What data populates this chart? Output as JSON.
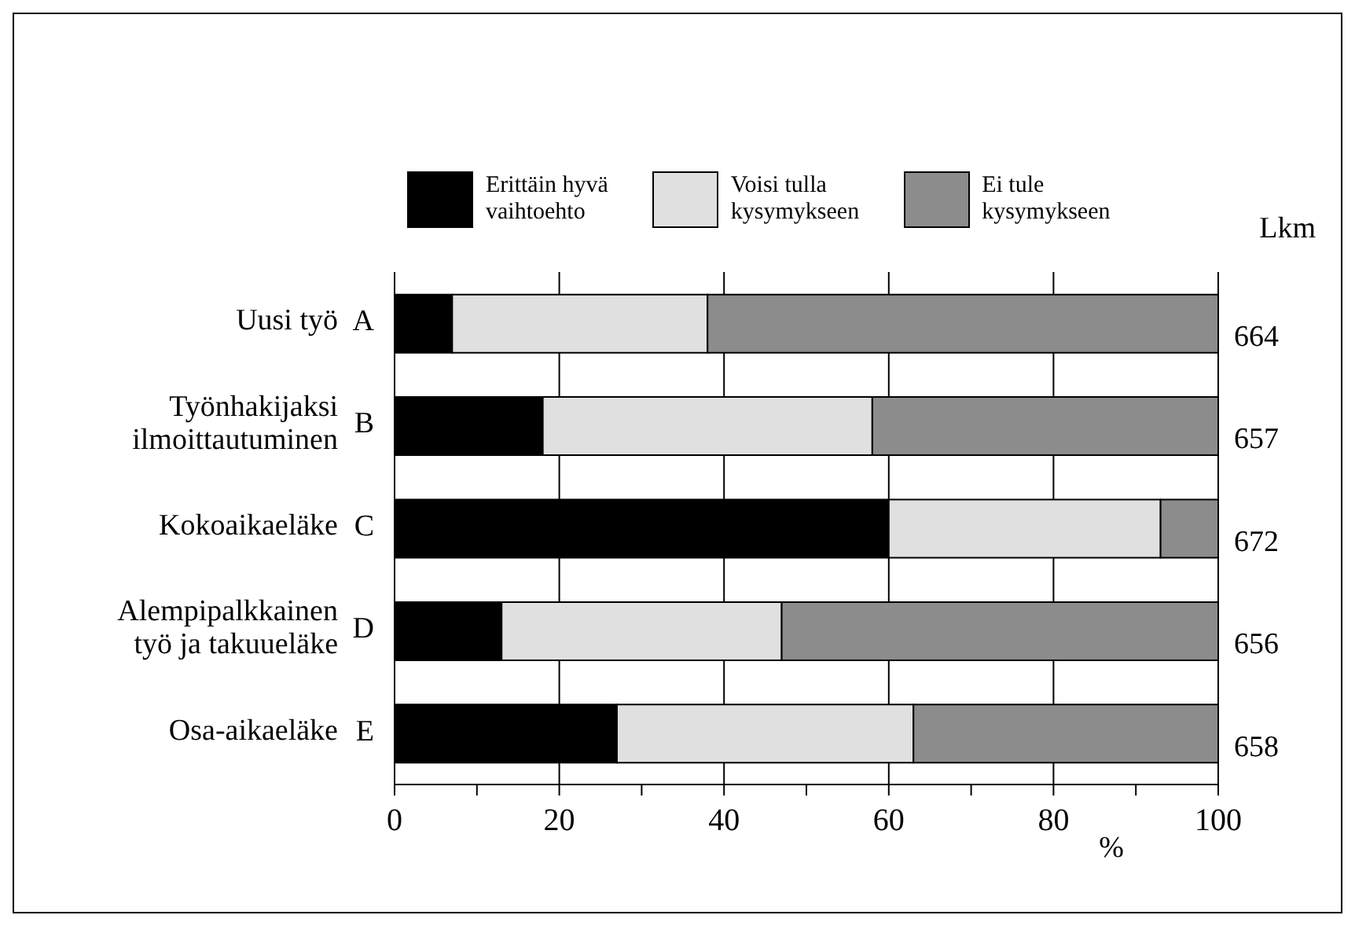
{
  "chart_data": {
    "type": "bar",
    "orientation": "horizontal",
    "stacked": true,
    "categories": [
      "Uusi työ A",
      "Työnhakijaksi\nilmoittautuminen B",
      "Kokoaikaeläke C",
      "Alempipalkkainen\ntyö ja takuueläke D",
      "Osa-aikaeläke E"
    ],
    "series": [
      {
        "name": "Erittäin hyvä\nvaihtoehto",
        "color": "#000000",
        "values": [
          7,
          18,
          60,
          13,
          27
        ]
      },
      {
        "name": "Voisi tulla\nkysymykseen",
        "color": "#e0e0e0",
        "values": [
          31,
          40,
          33,
          34,
          36
        ]
      },
      {
        "name": "Ei tule\nkysymykseen",
        "color": "#8c8c8c",
        "values": [
          62,
          42,
          7,
          53,
          37
        ]
      }
    ],
    "xlabel": "%",
    "xlim": [
      0,
      100
    ],
    "xticks": [
      0,
      {
        "value": 10,
        "label": null
      },
      20,
      {
        "value": 30,
        "label": null
      },
      40,
      {
        "value": 50,
        "label": null
      },
      60,
      {
        "value": 70,
        "label": null
      },
      80,
      {
        "value": 90,
        "label": null
      },
      100
    ],
    "grid": "x",
    "legend": "top",
    "annotations": [
      "Lkm",
      "664",
      "657",
      "672",
      "656",
      "658"
    ]
  }
}
